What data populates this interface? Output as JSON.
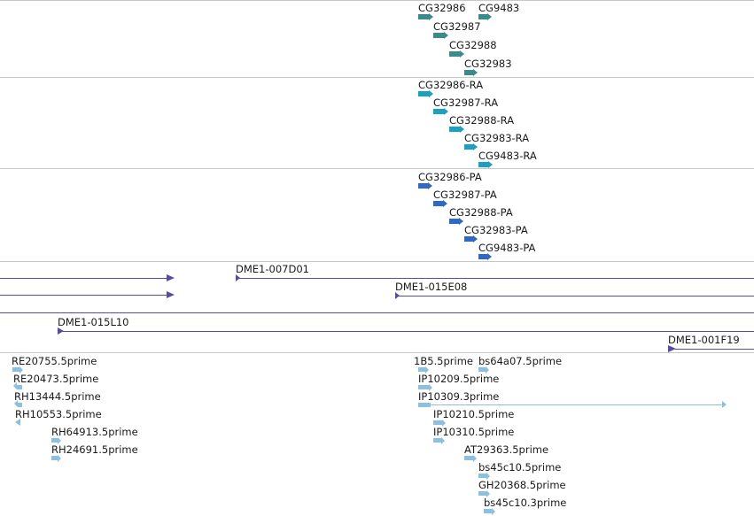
{
  "colors": {
    "genes": "#3a8c8c",
    "transcripts": "#1aa0c0",
    "proteins": "#2f68c8",
    "clones": "#5a4aa0",
    "ests": "#8cc0e0",
    "separator": "#c8c8c8"
  },
  "tracks": {
    "genes": [
      "CG32986",
      "CG9483",
      "CG32987",
      "CG32988",
      "CG32983"
    ],
    "transcripts": [
      "CG32986-RA",
      "CG32987-RA",
      "CG32988-RA",
      "CG32983-RA",
      "CG9483-RA"
    ],
    "proteins": [
      "CG32986-PA",
      "CG32987-PA",
      "CG32988-PA",
      "CG32983-PA",
      "CG9483-PA"
    ],
    "clones": [
      "DME1-007D01",
      "DME1-015E08",
      "DME1-015L10",
      "DME1-001F19"
    ],
    "ests": [
      "RE20755.5prime",
      "RE20473.5prime",
      "RH13444.5prime",
      "RH10553.5prime",
      "RH64913.5prime",
      "RH24691.5prime",
      "1B5.5prime",
      "bs64a07.5prime",
      "IP10209.5prime",
      "IP10309.3prime",
      "IP10210.5prime",
      "IP10310.5prime",
      "AT29363.5prime",
      "bs45c10.5prime",
      "GH20368.5prime",
      "bs45c10.3prime"
    ]
  }
}
